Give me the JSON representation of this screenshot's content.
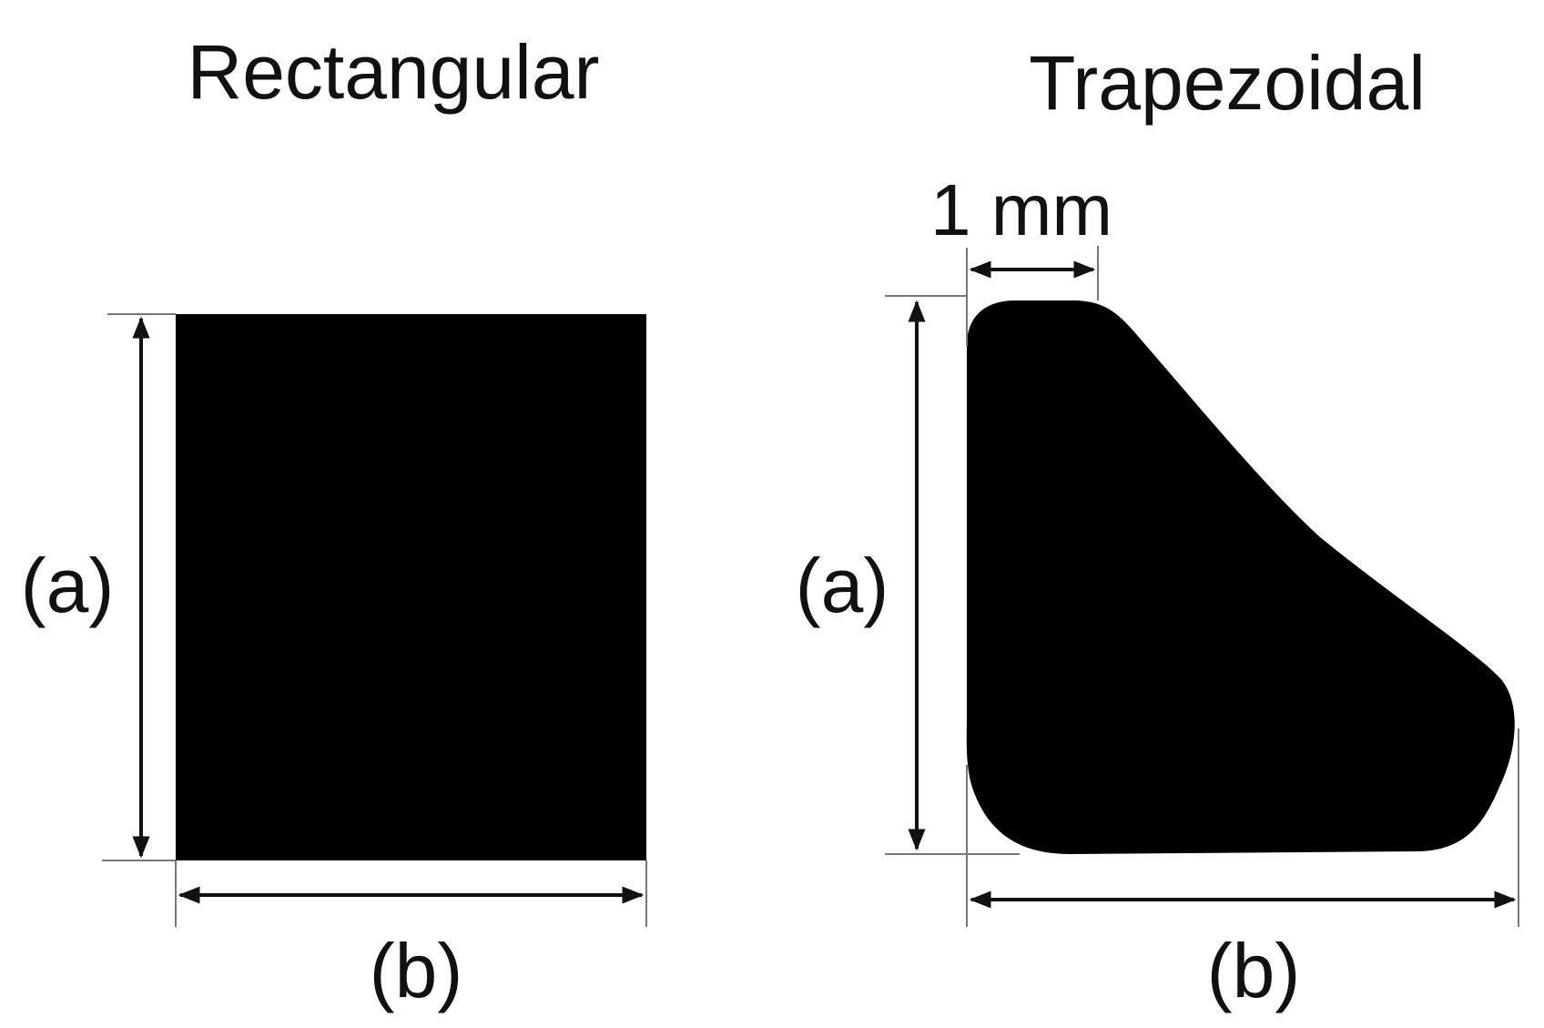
{
  "panels": [
    {
      "title": "Rectangular",
      "height_label": "(a)",
      "width_label": "(b)"
    },
    {
      "title": "Trapezoidal",
      "height_label": "(a)",
      "width_label": "(b)",
      "scale_label": "1 mm"
    }
  ],
  "colors": {
    "shape": "#000000",
    "text": "#111111",
    "extension_line": "#777777",
    "background": "#ffffff"
  }
}
